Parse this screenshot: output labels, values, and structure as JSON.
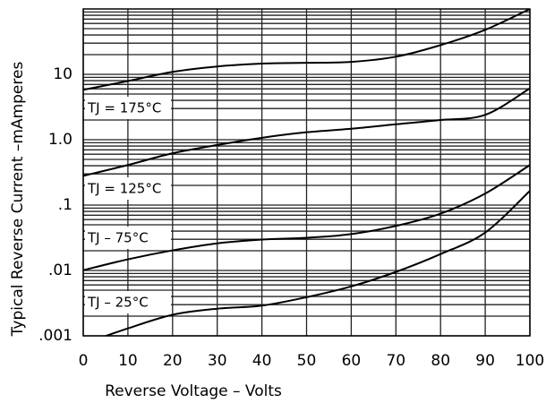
{
  "chart_data": {
    "type": "line",
    "xlabel": "Reverse Voltage – Volts",
    "ylabel": "Typical Reverse Current  –mAmperes",
    "x": [
      0,
      10,
      20,
      30,
      40,
      50,
      60,
      70,
      80,
      90,
      100
    ],
    "series": [
      {
        "name": "TJ = 175°C",
        "color": "#000000",
        "values": [
          5.8,
          7.9,
          10.9,
          13.2,
          14.6,
          15,
          15.5,
          18.6,
          28,
          48,
          100
        ]
      },
      {
        "name": "TJ = 125°C",
        "color": "#000000",
        "values": [
          0.28,
          0.41,
          0.62,
          0.83,
          1.07,
          1.3,
          1.47,
          1.72,
          2.0,
          2.4,
          6.1
        ]
      },
      {
        "name": "TJ – 75°C",
        "color": "#000000",
        "values": [
          0.0101,
          0.0148,
          0.0203,
          0.026,
          0.0297,
          0.0316,
          0.036,
          0.048,
          0.074,
          0.15,
          0.41
        ]
      },
      {
        "name": "TJ – 25°C",
        "color": "#000000",
        "values": [
          0.00075,
          0.0013,
          0.0021,
          0.0026,
          0.0029,
          0.0039,
          0.0057,
          0.0095,
          0.0178,
          0.038,
          0.165
        ]
      }
    ],
    "xlim": [
      0,
      100
    ],
    "xticks": [
      0,
      10,
      20,
      30,
      40,
      50,
      60,
      70,
      80,
      90,
      100
    ],
    "ylim": [
      0.001,
      100
    ],
    "ylog": true,
    "yticks": [
      {
        "value": 0.001,
        "label": ".001"
      },
      {
        "value": 0.01,
        "label": ".01"
      },
      {
        "value": 0.1,
        "label": ".1"
      },
      {
        "value": 1,
        "label": "1.0"
      },
      10
    ],
    "yminorticks": [
      0.002,
      0.003,
      0.004,
      0.005,
      0.006,
      0.007,
      0.008,
      0.009,
      0.02,
      0.03,
      0.04,
      0.05,
      0.06,
      0.07,
      0.08,
      0.09,
      0.2,
      0.3,
      0.4,
      0.5,
      0.6,
      0.7,
      0.8,
      0.9,
      2,
      3,
      4,
      5,
      6,
      7,
      8,
      9,
      20,
      30,
      40,
      50,
      60,
      70,
      80,
      90
    ],
    "grid": true
  }
}
